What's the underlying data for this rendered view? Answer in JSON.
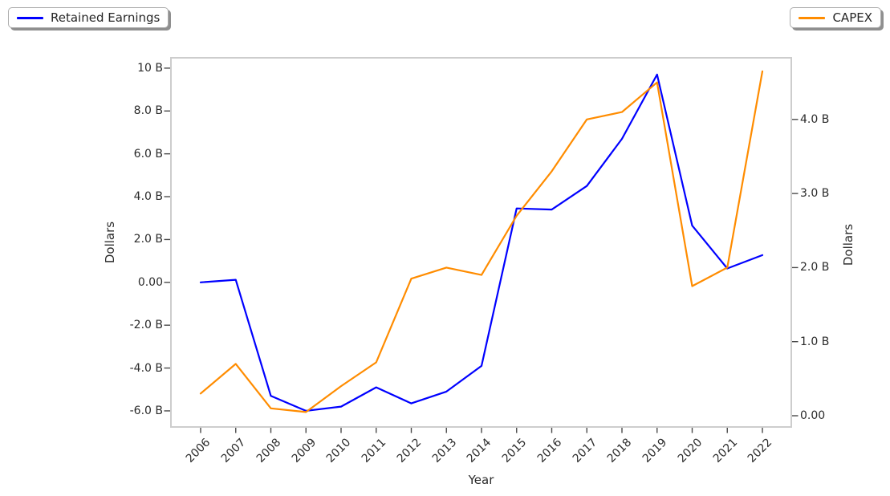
{
  "legend_left": {
    "label": "Retained Earnings",
    "color": "#0000ff"
  },
  "legend_right": {
    "label": "CAPEX",
    "color": "#ff8c00"
  },
  "chart_data": {
    "type": "line",
    "title": "",
    "xlabel": "Year",
    "ylabel_left": "Dollars",
    "ylabel_right": "Dollars",
    "legend_position": "upper-left and upper-right, fancy boxes with shadow",
    "grid": false,
    "x": [
      2006,
      2007,
      2008,
      2009,
      2010,
      2011,
      2012,
      2013,
      2014,
      2015,
      2016,
      2017,
      2018,
      2019,
      2020,
      2021,
      2022
    ],
    "series": [
      {
        "name": "Retained Earnings",
        "axis": "left",
        "color": "#0000ff",
        "unit": "billions of dollars",
        "values": [
          0.0,
          0.12,
          -5.3,
          -6.0,
          -5.8,
          -4.9,
          -5.65,
          -5.1,
          -3.9,
          3.45,
          3.4,
          4.5,
          6.7,
          9.7,
          2.65,
          0.65,
          1.27
        ]
      },
      {
        "name": "CAPEX",
        "axis": "right",
        "color": "#ff8c00",
        "unit": "billions of dollars",
        "values": [
          0.3,
          0.7,
          0.1,
          0.05,
          0.4,
          0.72,
          1.85,
          2.0,
          1.9,
          2.7,
          3.3,
          4.0,
          4.1,
          4.5,
          1.75,
          2.0,
          4.65
        ]
      }
    ],
    "left_axis": {
      "ticks": [
        "10 B",
        "8.0 B",
        "6.0 B",
        "4.0 B",
        "2.0 B",
        "0.00",
        "-2.0 B",
        "-4.0 B",
        "-6.0 B"
      ],
      "tick_values": [
        10,
        8,
        6,
        4,
        2,
        0,
        -2,
        -4,
        -6
      ],
      "range": [
        -6.78,
        10.49
      ]
    },
    "right_axis": {
      "ticks": [
        "4.0 B",
        "3.0 B",
        "2.0 B",
        "1.0 B",
        "0.00"
      ],
      "tick_values": [
        4,
        3,
        2,
        1,
        0
      ],
      "range": [
        -0.17,
        4.83
      ]
    }
  }
}
